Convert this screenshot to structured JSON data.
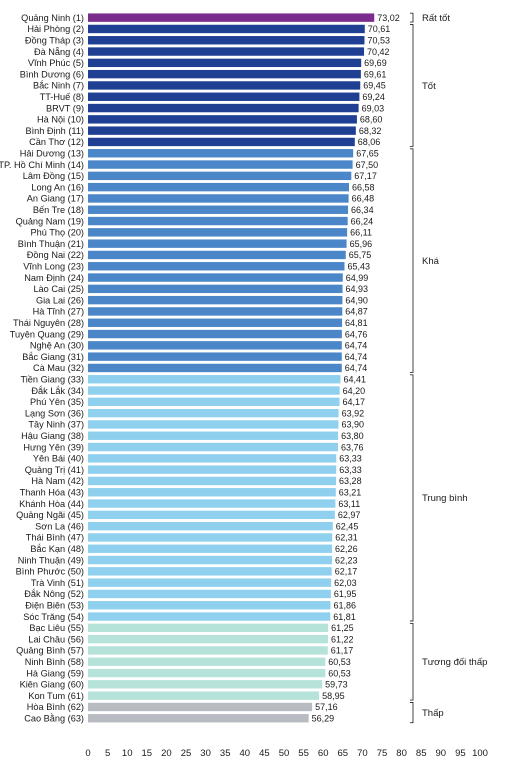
{
  "chart_data": {
    "type": "bar",
    "orientation": "horizontal",
    "xlim": [
      0,
      100
    ],
    "xticks": [
      0,
      5,
      10,
      15,
      20,
      25,
      30,
      35,
      40,
      45,
      50,
      55,
      60,
      65,
      70,
      75,
      80,
      85,
      90,
      95,
      100
    ],
    "grid": false,
    "categories": [
      "Quảng Ninh (1)",
      "Hải Phòng (2)",
      "Đồng Tháp (3)",
      "Đà Nẵng (4)",
      "Vĩnh Phúc (5)",
      "Bình Dương (6)",
      "Bắc Ninh (7)",
      "TT-Huế (8)",
      "BRVT (9)",
      "Hà Nội (10)",
      "Bình Định (11)",
      "Cần Thơ (12)",
      "Hải Dương (13)",
      "TP. Hồ Chí Minh (14)",
      "Lâm Đồng (15)",
      "Long An (16)",
      "An Giang (17)",
      "Bến Tre (18)",
      "Quảng Nam (19)",
      "Phú Thọ (20)",
      "Bình Thuận (21)",
      "Đồng Nai (22)",
      "Vĩnh Long (23)",
      "Nam Định (24)",
      "Lào Cai (25)",
      "Gia Lai (26)",
      "Hà Tĩnh (27)",
      "Thái Nguyên (28)",
      "Tuyên Quang (29)",
      "Nghệ An (30)",
      "Bắc Giang (31)",
      "Cà Mau (32)",
      "Tiền Giang (33)",
      "Đắk Lắk (34)",
      "Phú Yên (35)",
      "Lạng Sơn (36)",
      "Tây Ninh (37)",
      "Hậu Giang (38)",
      "Hưng Yên (39)",
      "Yên Bái (40)",
      "Quảng Trị (41)",
      "Hà Nam (42)",
      "Thanh Hóa (43)",
      "Khánh Hòa (44)",
      "Quảng Ngãi (45)",
      "Sơn La (46)",
      "Thái Bình (47)",
      "Bắc Kạn (48)",
      "Ninh Thuận (49)",
      "Bình Phước (50)",
      "Trà Vinh (51)",
      "Đắk Nông (52)",
      "Điện Biên (53)",
      "Sóc Trăng (54)",
      "Bạc Liêu (55)",
      "Lai Châu (56)",
      "Quảng Bình (57)",
      "Ninh Bình (58)",
      "Hà Giang (59)",
      "Kiên Giang (60)",
      "Kon Tum (61)",
      "Hòa Bình (62)",
      "Cao Bằng (63)"
    ],
    "values": [
      73.02,
      70.61,
      70.53,
      70.42,
      69.69,
      69.61,
      69.45,
      69.24,
      69.03,
      68.6,
      68.32,
      68.06,
      67.65,
      67.5,
      67.17,
      66.58,
      66.48,
      66.34,
      66.24,
      66.11,
      65.96,
      65.75,
      65.43,
      64.99,
      64.93,
      64.9,
      64.87,
      64.81,
      64.76,
      64.74,
      64.74,
      64.74,
      64.41,
      64.2,
      64.17,
      63.92,
      63.9,
      63.8,
      63.76,
      63.33,
      63.33,
      63.28,
      63.21,
      63.11,
      62.97,
      62.45,
      62.31,
      62.26,
      62.23,
      62.17,
      62.03,
      61.95,
      61.86,
      61.81,
      61.25,
      61.22,
      61.17,
      60.53,
      60.53,
      59.73,
      58.95,
      57.16,
      56.29
    ],
    "value_labels": [
      "73,02",
      "70,61",
      "70,53",
      "70,42",
      "69,69",
      "69,61",
      "69,45",
      "69,24",
      "69,03",
      "68,60",
      "68,32",
      "68,06",
      "67,65",
      "67,50",
      "67,17",
      "66,58",
      "66,48",
      "66,34",
      "66,24",
      "66,11",
      "65,96",
      "65,75",
      "65,43",
      "64,99",
      "64,93",
      "64,90",
      "64,87",
      "64,81",
      "64,76",
      "64,74",
      "64,74",
      "64,74",
      "64,41",
      "64,20",
      "64,17",
      "63,92",
      "63,90",
      "63,80",
      "63,76",
      "63,33",
      "63,33",
      "63,28",
      "63,21",
      "63,11",
      "62,97",
      "62,45",
      "62,31",
      "62,26",
      "62,23",
      "62,17",
      "62,03",
      "61,95",
      "61,86",
      "61,81",
      "61,25",
      "61,22",
      "61,17",
      "60,53",
      "60,53",
      "59,73",
      "58,95",
      "57,16",
      "56,29"
    ],
    "groups": [
      {
        "label": "Rất tốt",
        "from": 0,
        "to": 0,
        "color": "#7b2d8e"
      },
      {
        "label": "Tốt",
        "from": 1,
        "to": 11,
        "color": "#1f3f93"
      },
      {
        "label": "Khá",
        "from": 12,
        "to": 31,
        "color": "#4a86c8"
      },
      {
        "label": "Trung bình",
        "from": 32,
        "to": 53,
        "color": "#8fd0ee"
      },
      {
        "label": "Tương đối thấp",
        "from": 54,
        "to": 60,
        "color": "#b6e3d9"
      },
      {
        "label": "Thấp",
        "from": 61,
        "to": 62,
        "color": "#b8bcc2"
      }
    ]
  }
}
